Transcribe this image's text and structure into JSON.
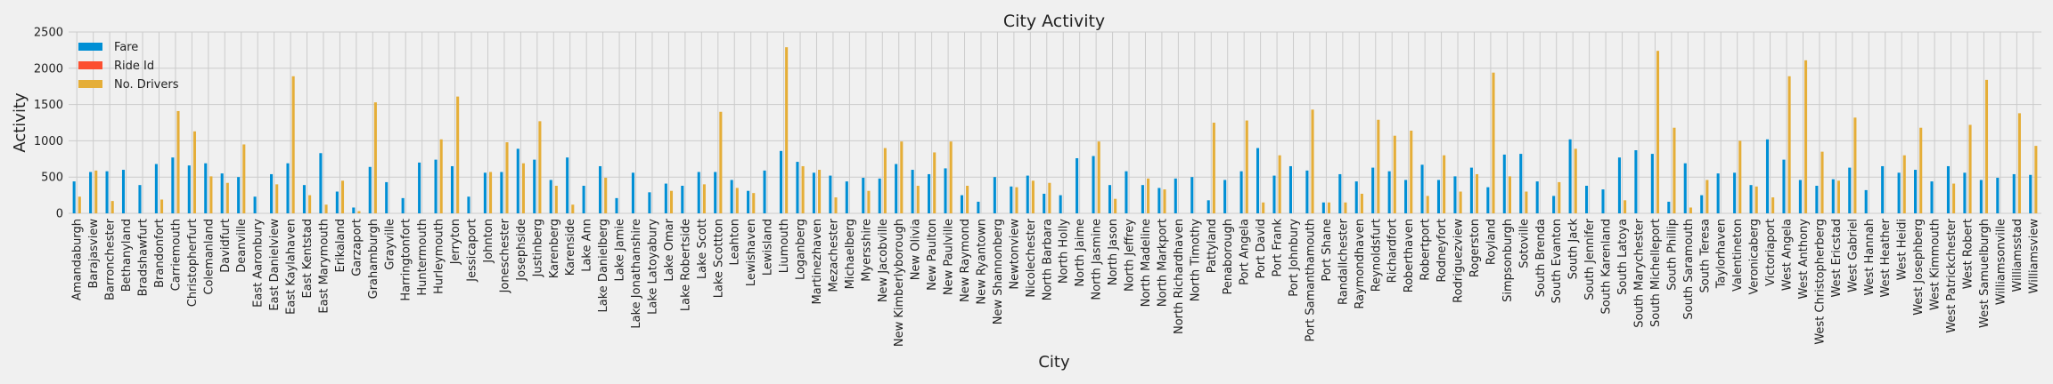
{
  "chart_data": {
    "type": "bar",
    "title": "City Activity",
    "xlabel": "City",
    "ylabel": "Activity",
    "ylim": [
      0,
      2500
    ],
    "yticks": [
      0,
      500,
      1000,
      1500,
      2000,
      2500
    ],
    "grid": true,
    "legend_position": "top-left",
    "categories": [
      "Amandaburgh",
      "Barajasview",
      "Barronchester",
      "Bethanyland",
      "Bradshawfurt",
      "Brandonfort",
      "Carriemouth",
      "Christopherfurt",
      "Colemanland",
      "Davidfurt",
      "Deanville",
      "East Aaronbury",
      "East Danielview",
      "East Kaylahaven",
      "East Kentstad",
      "East Marymouth",
      "Erikaland",
      "Garzaport",
      "Grahamburgh",
      "Grayville",
      "Harringtonfort",
      "Huntermouth",
      "Hurleymouth",
      "Jerryton",
      "Jessicaport",
      "Johnton",
      "Joneschester",
      "Josephside",
      "Justinberg",
      "Karenberg",
      "Karenside",
      "Lake Ann",
      "Lake Danielberg",
      "Lake Jamie",
      "Lake Jonathanshire",
      "Lake Latoyabury",
      "Lake Omar",
      "Lake Robertside",
      "Lake Scott",
      "Lake Scottton",
      "Leahton",
      "Lewishaven",
      "Lewisland",
      "Liumouth",
      "Loganberg",
      "Martinezhaven",
      "Mezachester",
      "Michaelberg",
      "Myersshire",
      "New Jacobville",
      "New Kimberlyborough",
      "New Olivia",
      "New Paulton",
      "New Paulville",
      "New Raymond",
      "New Ryantown",
      "New Shannonberg",
      "Newtonview",
      "Nicolechester",
      "North Barbara",
      "North Holly",
      "North Jaime",
      "North Jasmine",
      "North Jason",
      "North Jeffrey",
      "North Madeline",
      "North Markport",
      "North Richardhaven",
      "North Timothy",
      "Pattyland",
      "Penaborough",
      "Port Angela",
      "Port David",
      "Port Frank",
      "Port Johnbury",
      "Port Samanthamouth",
      "Port Shane",
      "Randallchester",
      "Raymondhaven",
      "Reynoldsfurt",
      "Richardfort",
      "Roberthaven",
      "Robertport",
      "Rodneyfort",
      "Rodriguezview",
      "Rogerston",
      "Royland",
      "Simpsonburgh",
      "Sotoville",
      "South Brenda",
      "South Evanton",
      "South Jack",
      "South Jennifer",
      "South Karenland",
      "South Latoya",
      "South Marychester",
      "South Michelleport",
      "South Phillip",
      "South Saramouth",
      "South Teresa",
      "Taylorhaven",
      "Valentineton",
      "Veronicaberg",
      "Victoriaport",
      "West Angela",
      "West Anthony",
      "West Christopherberg",
      "West Ericstad",
      "West Gabriel",
      "West Hannah",
      "West Heather",
      "West Heidi",
      "West Josephberg",
      "West Kimmouth",
      "West Patrickchester",
      "West Robert",
      "West Samuelburgh",
      "Williamsonville",
      "Williamsstad",
      "Williamsview"
    ],
    "series": [
      {
        "name": "Fare",
        "color": "#008fd5",
        "values": [
          440,
          570,
          580,
          600,
          390,
          680,
          770,
          660,
          690,
          550,
          500,
          230,
          540,
          690,
          390,
          830,
          300,
          80,
          640,
          430,
          210,
          700,
          740,
          650,
          230,
          560,
          570,
          890,
          740,
          460,
          770,
          380,
          650,
          210,
          560,
          290,
          410,
          380,
          570,
          570,
          460,
          310,
          590,
          860,
          710,
          560,
          520,
          440,
          490,
          480,
          680,
          600,
          540,
          620,
          250,
          160,
          500,
          370,
          520,
          270,
          250,
          760,
          790,
          390,
          580,
          390,
          350,
          480,
          500,
          180,
          460,
          580,
          900,
          520,
          650,
          590,
          150,
          540,
          440,
          630,
          580,
          460,
          670,
          460,
          510,
          630,
          360,
          810,
          820,
          440,
          240,
          1020,
          380,
          330,
          770,
          870,
          820,
          160,
          690,
          250,
          550,
          560,
          390,
          1020,
          740,
          460,
          380,
          470,
          630,
          320,
          650,
          560,
          600,
          440,
          650,
          560,
          460,
          490,
          540,
          530
        ]
      },
      {
        "name": "Ride Id",
        "color": "#fc4f30",
        "values": [
          0,
          0,
          0,
          0,
          0,
          0,
          0,
          0,
          0,
          0,
          0,
          0,
          0,
          0,
          0,
          0,
          0,
          0,
          0,
          0,
          0,
          0,
          0,
          0,
          0,
          0,
          0,
          0,
          0,
          0,
          0,
          0,
          0,
          0,
          0,
          0,
          0,
          0,
          0,
          0,
          0,
          0,
          0,
          0,
          0,
          0,
          0,
          0,
          0,
          0,
          0,
          0,
          0,
          0,
          0,
          0,
          0,
          0,
          0,
          0,
          0,
          0,
          0,
          0,
          0,
          0,
          0,
          0,
          0,
          0,
          0,
          0,
          0,
          0,
          0,
          0,
          0,
          0,
          0,
          0,
          0,
          0,
          0,
          0,
          0,
          0,
          0,
          0,
          0,
          0,
          0,
          0,
          0,
          0,
          0,
          0,
          0,
          0,
          0,
          0,
          0,
          0,
          0,
          0,
          0,
          0,
          0,
          0,
          0,
          0,
          0,
          0,
          0,
          0,
          0,
          0,
          0,
          0,
          0,
          0
        ]
      },
      {
        "name": "No. Drivers",
        "color": "#e5ae38",
        "values": [
          230,
          590,
          170,
          0,
          0,
          190,
          1410,
          1130,
          510,
          420,
          950,
          0,
          400,
          1890,
          250,
          120,
          450,
          30,
          1530,
          0,
          0,
          0,
          1020,
          1610,
          0,
          570,
          980,
          690,
          1270,
          380,
          120,
          0,
          490,
          0,
          0,
          0,
          310,
          0,
          400,
          1400,
          350,
          280,
          0,
          2290,
          650,
          600,
          220,
          0,
          310,
          900,
          990,
          380,
          840,
          990,
          380,
          0,
          0,
          360,
          450,
          420,
          0,
          0,
          990,
          200,
          0,
          480,
          330,
          0,
          0,
          1250,
          0,
          1280,
          150,
          800,
          0,
          1430,
          150,
          150,
          270,
          1290,
          1070,
          1140,
          240,
          800,
          300,
          540,
          1940,
          510,
          300,
          0,
          430,
          890,
          0,
          0,
          180,
          0,
          2240,
          1180,
          80,
          460,
          0,
          1000,
          370,
          220,
          1890,
          2110,
          850,
          450,
          1320,
          0,
          0,
          800,
          1180,
          0,
          410,
          1220,
          1840,
          0,
          1380,
          930
        ]
      }
    ]
  }
}
